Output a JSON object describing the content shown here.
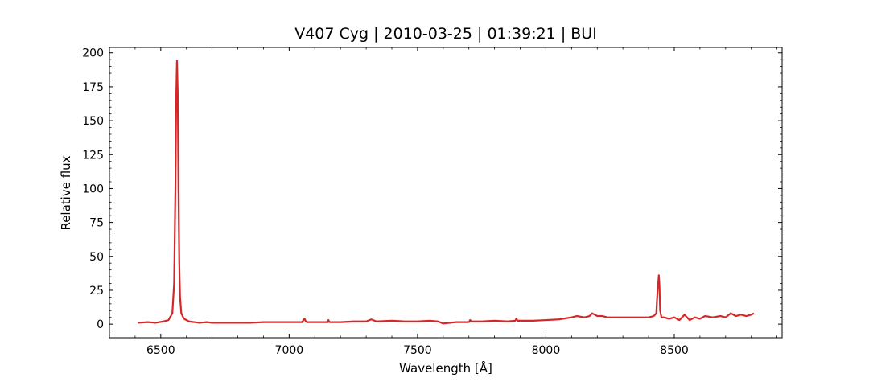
{
  "chart_data": {
    "type": "line",
    "title": "V407 Cyg | 2010-03-25 | 01:39:21 | BUI",
    "xlabel": "Wavelength [Å]",
    "ylabel": "Relative flux",
    "xlim": [
      6300,
      8920
    ],
    "ylim": [
      -10,
      204
    ],
    "xticks": [
      6500,
      7000,
      7500,
      8000,
      8500
    ],
    "yticks": [
      0,
      25,
      50,
      75,
      100,
      125,
      150,
      175,
      200
    ],
    "grid": false,
    "line_color": "#d62728",
    "series": [
      {
        "x": [
          6410,
          6450,
          6480,
          6510,
          6530,
          6545,
          6552,
          6557,
          6560,
          6563,
          6566,
          6569,
          6572,
          6575,
          6580,
          6590,
          6610,
          6650,
          6680,
          6700,
          6750,
          6800,
          6850,
          6900,
          6950,
          7000,
          7050,
          7060,
          7065,
          7070,
          7100,
          7150,
          7153,
          7157,
          7200,
          7250,
          7300,
          7320,
          7340,
          7400,
          7450,
          7500,
          7550,
          7580,
          7600,
          7650,
          7700,
          7705,
          7710,
          7750,
          7800,
          7850,
          7880,
          7885,
          7890,
          7900,
          7950,
          8000,
          8050,
          8100,
          8120,
          8150,
          8170,
          8180,
          8190,
          8200,
          8220,
          8240,
          8260,
          8300,
          8350,
          8400,
          8420,
          8430,
          8435,
          8440,
          8442,
          8445,
          8450,
          8460,
          8480,
          8500,
          8520,
          8540,
          8560,
          8580,
          8600,
          8620,
          8650,
          8680,
          8700,
          8720,
          8740,
          8760,
          8780,
          8800,
          8810
        ],
        "y": [
          1,
          1.5,
          1,
          2,
          3,
          8,
          30,
          100,
          165,
          194,
          170,
          100,
          45,
          20,
          8,
          4,
          2,
          1,
          1.5,
          1,
          1,
          1,
          1,
          1.5,
          1.5,
          1.5,
          1.5,
          4,
          2,
          1.5,
          1.5,
          1.5,
          3,
          1.5,
          1.5,
          2,
          2,
          3.5,
          2,
          2.5,
          2,
          2,
          2.5,
          2,
          0.5,
          1.5,
          1.5,
          3,
          2,
          2,
          2.5,
          2,
          2.5,
          4,
          2.5,
          2.5,
          2.5,
          3,
          3.5,
          5,
          6,
          5,
          6,
          8,
          7,
          6,
          6,
          5,
          5,
          5,
          5,
          5,
          6,
          8,
          25,
          36,
          30,
          10,
          5,
          5,
          4,
          5,
          3,
          7,
          3,
          5,
          4,
          6,
          5,
          6,
          5,
          8,
          6,
          7,
          6,
          7,
          8
        ]
      }
    ]
  }
}
